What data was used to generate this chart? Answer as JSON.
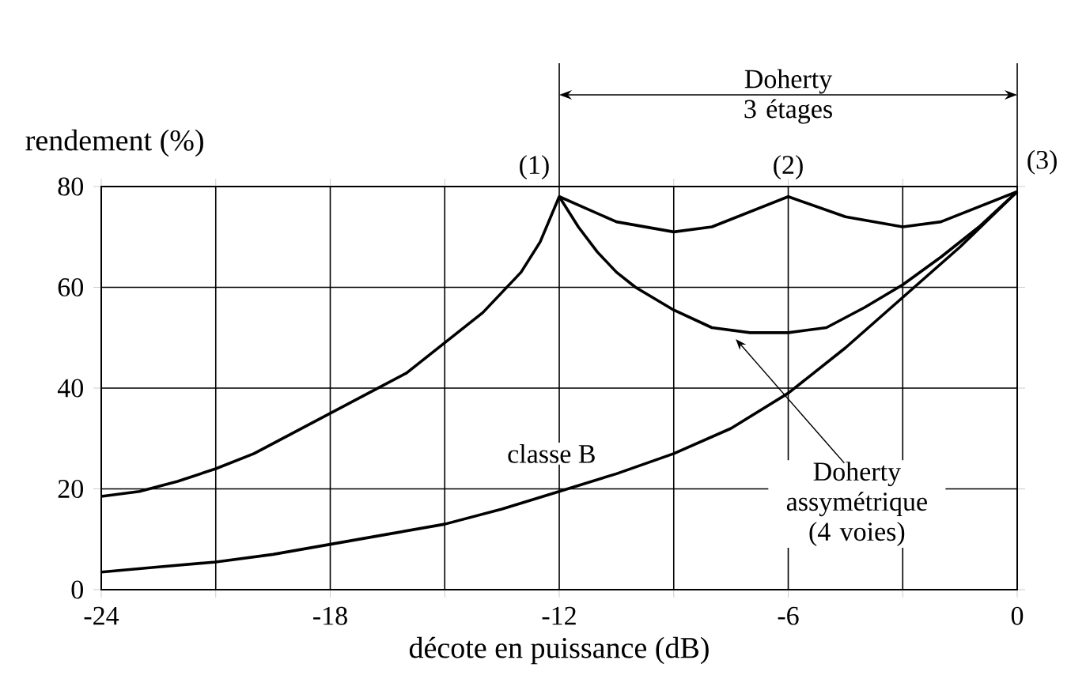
{
  "chart_data": {
    "type": "line",
    "xlabel": "décote en puissance (dB)",
    "ylabel": "rendement (%)",
    "xlim": [
      -24,
      0
    ],
    "ylim": [
      0,
      80
    ],
    "xticks": [
      -24,
      {
        "value": -21,
        "label": null
      },
      -18,
      {
        "value": -15,
        "label": null
      },
      -12,
      {
        "value": -9,
        "label": null
      },
      -6,
      {
        "value": -3,
        "label": null
      },
      0
    ],
    "yticks": [
      0,
      20,
      40,
      60,
      80
    ],
    "grid": true,
    "legend": false,
    "marker": "none",
    "line_style": "solid",
    "series": [
      {
        "name": "classe B",
        "color": "#000000",
        "x": [
          -24,
          -22.5,
          -21,
          -19.5,
          -18,
          -16.5,
          -15,
          -13.5,
          -12,
          -10.5,
          -9,
          -7.5,
          -6,
          -4.5,
          -3,
          -1.5,
          0
        ],
        "values": [
          3.5,
          4.5,
          5.5,
          7,
          9,
          11,
          13,
          16,
          19.5,
          23,
          27,
          32,
          39,
          48,
          58,
          68,
          79
        ]
      },
      {
        "color": "#000000",
        "x": [
          -24,
          -23,
          -22,
          -21,
          -20,
          -19,
          -18,
          -17,
          -16,
          -15,
          -14,
          -13,
          -12.5,
          -12,
          -11.5,
          -11,
          -10.5,
          -10,
          -9,
          -8,
          -7,
          -6,
          -5,
          -4,
          -3,
          -2,
          -1,
          0
        ],
        "values": [
          18.5,
          19.5,
          21.5,
          24,
          27,
          31,
          35,
          39,
          43,
          49,
          55,
          63,
          69,
          78,
          72,
          67,
          63,
          60,
          55.5,
          52,
          51,
          51,
          52,
          56,
          60.5,
          66,
          72,
          79
        ]
      },
      {
        "color": "#000000",
        "x": [
          -12,
          -10.5,
          -9,
          -8,
          -6,
          -4.5,
          -3,
          -2,
          0
        ],
        "values": [
          78,
          73,
          71,
          72,
          78,
          74,
          72,
          73,
          79
        ]
      }
    ],
    "annotations": [
      {
        "text": "(1)",
        "x": -12,
        "y": 78
      },
      {
        "text": "(2)",
        "x": -6,
        "y": 78
      },
      {
        "text": "(3)",
        "x": 0,
        "y": 79
      },
      "Doherty 3 étages",
      "Doherty assymétrique (4 voies)"
    ]
  }
}
